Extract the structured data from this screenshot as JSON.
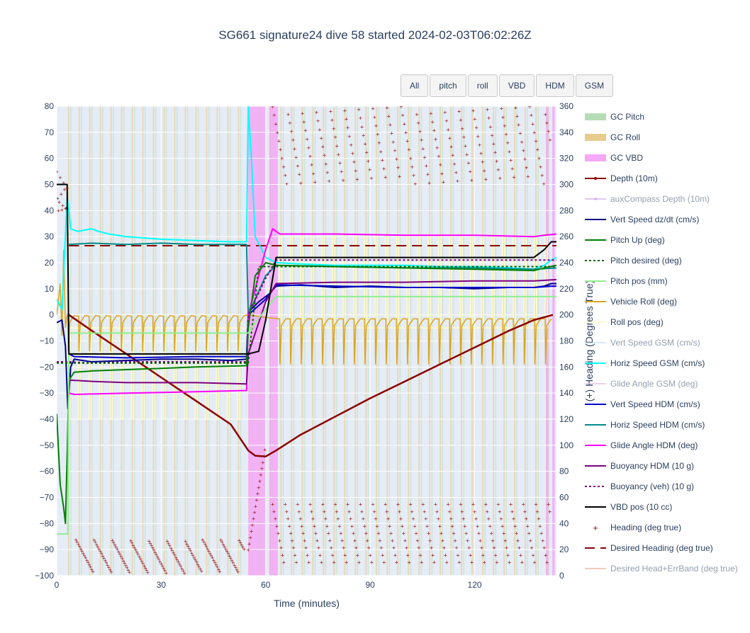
{
  "page": {
    "title": "SG661 signature24 dive 58 started 2024-02-03T06:02:26Z"
  },
  "buttons": [
    "All",
    "pitch",
    "roll",
    "VBD",
    "HDM",
    "GSM"
  ],
  "colors": {
    "plot_bg": "#e5ecf6",
    "grid": "#ffffff",
    "gc_pitch": "#b6dcb6",
    "gc_roll": "#e8cc8e",
    "gc_vbd": "#f5a8f5",
    "depth": "#8b0000",
    "aux_depth": "#c98ce9",
    "vert_speed_dzdt": "#00008b",
    "pitch_up": "#008000",
    "pitch_desired": "#006400",
    "pitch_pos": "#90ee90",
    "vehicle_roll": "#daa520",
    "roll_pos": "#fafad2",
    "vert_speed_gsm": "#add8e6",
    "horiz_speed_gsm": "#00ffff",
    "glide_angle_gsm": "#dda0dd",
    "vert_speed_hdm": "#0000cd",
    "horiz_speed_hdm": "#008b8b",
    "glide_angle_hdm": "#ff00ff",
    "buoyancy_hdm": "#800080",
    "buoyancy_veh": "#800080",
    "vbd_pos": "#000000",
    "heading": "#8b0000",
    "desired_heading": "#8b0000",
    "desired_head_band": "#e9967a"
  },
  "chart_data": {
    "type": "line",
    "xlabel": "Time (minutes)",
    "ylabel": "",
    "y2label": "(+) Heading (Degrees True)",
    "xlim": [
      0,
      143.5
    ],
    "ylim": [
      -100,
      80
    ],
    "y2lim": [
      0,
      360
    ],
    "xticks": [
      0,
      30,
      60,
      90,
      120
    ],
    "yticks": [
      -100,
      -90,
      -80,
      -70,
      -60,
      -50,
      -40,
      -30,
      -20,
      -10,
      0,
      10,
      20,
      30,
      40,
      50,
      60,
      70,
      80
    ],
    "y2ticks": [
      0,
      20,
      40,
      60,
      80,
      100,
      120,
      140,
      160,
      180,
      200,
      220,
      240,
      260,
      280,
      300,
      320,
      340,
      360
    ],
    "grid": true,
    "legend_position": "right",
    "legend": [
      {
        "label": "GC Pitch",
        "style": "band",
        "color_key": "gc_pitch",
        "muted": false
      },
      {
        "label": "GC Roll",
        "style": "band",
        "color_key": "gc_roll",
        "muted": false
      },
      {
        "label": "GC VBD",
        "style": "band",
        "color_key": "gc_vbd",
        "muted": false
      },
      {
        "label": "Depth (10m)",
        "style": "line-marker",
        "color_key": "depth",
        "muted": false
      },
      {
        "label": "auxCompass Depth (10m)",
        "style": "line-marker",
        "color_key": "aux_depth",
        "muted": true
      },
      {
        "label": "Vert Speed dz/dt (cm/s)",
        "style": "line",
        "color_key": "vert_speed_dzdt",
        "muted": false
      },
      {
        "label": "Pitch Up (deg)",
        "style": "line",
        "color_key": "pitch_up",
        "muted": false
      },
      {
        "label": "Pitch desired (deg)",
        "style": "dot",
        "color_key": "pitch_desired",
        "muted": false
      },
      {
        "label": "Pitch pos (mm)",
        "style": "line",
        "color_key": "pitch_pos",
        "muted": false
      },
      {
        "label": "Vehicle Roll (deg)",
        "style": "line",
        "color_key": "vehicle_roll",
        "muted": false
      },
      {
        "label": "Roll pos (deg)",
        "style": "line",
        "color_key": "roll_pos",
        "muted": false
      },
      {
        "label": "Vert Speed GSM (cm/s)",
        "style": "line",
        "color_key": "vert_speed_gsm",
        "muted": true
      },
      {
        "label": "Horiz Speed GSM (cm/s)",
        "style": "line",
        "color_key": "horiz_speed_gsm",
        "muted": false
      },
      {
        "label": "Glide Angle GSM (deg)",
        "style": "line",
        "color_key": "glide_angle_gsm",
        "muted": true
      },
      {
        "label": "Vert Speed HDM (cm/s)",
        "style": "line",
        "color_key": "vert_speed_hdm",
        "muted": false
      },
      {
        "label": "Horiz Speed HDM (cm/s)",
        "style": "line",
        "color_key": "horiz_speed_hdm",
        "muted": false
      },
      {
        "label": "Glide Angle HDM (deg)",
        "style": "line",
        "color_key": "glide_angle_hdm",
        "muted": false
      },
      {
        "label": "Buoyancy HDM (10 g)",
        "style": "line",
        "color_key": "buoyancy_hdm",
        "muted": false
      },
      {
        "label": "Buoyancy (veh) (10 g)",
        "style": "dot",
        "color_key": "buoyancy_veh",
        "muted": false
      },
      {
        "label": "VBD pos (10 cc)",
        "style": "line",
        "color_key": "vbd_pos",
        "muted": false
      },
      {
        "label": "Heading (deg true)",
        "style": "marker",
        "color_key": "heading",
        "muted": false
      },
      {
        "label": "Desired Heading (deg true)",
        "style": "dash",
        "color_key": "desired_heading",
        "muted": false
      },
      {
        "label": "Desired Head+ErrBand (deg true)",
        "style": "line",
        "color_key": "desired_head_band",
        "muted": true
      }
    ],
    "gc_vbd_bands": [
      [
        55,
        60
      ],
      [
        61,
        63.5
      ],
      [
        140.5,
        141.2
      ],
      [
        142.3,
        143
      ]
    ],
    "series": [
      {
        "name": "Depth (10m)",
        "color_key": "depth",
        "width": 2.5,
        "dash": "",
        "points": [
          [
            3.5,
            0
          ],
          [
            10,
            -6
          ],
          [
            20,
            -15
          ],
          [
            30,
            -24
          ],
          [
            40,
            -33
          ],
          [
            50,
            -42
          ],
          [
            55,
            -52
          ],
          [
            57,
            -54
          ],
          [
            60,
            -54.3
          ],
          [
            63,
            -52
          ],
          [
            70,
            -46
          ],
          [
            80,
            -39
          ],
          [
            90,
            -32
          ],
          [
            100,
            -25.5
          ],
          [
            110,
            -19
          ],
          [
            120,
            -12.5
          ],
          [
            130,
            -6
          ],
          [
            137,
            -2
          ],
          [
            142.5,
            0
          ]
        ]
      },
      {
        "name": "Vert Speed dz/dt (cm/s)",
        "color_key": "vert_speed_dzdt",
        "width": 2,
        "dash": "",
        "points": [
          [
            0,
            -3
          ],
          [
            1.5,
            -2
          ],
          [
            2.5,
            -12
          ],
          [
            3.2,
            -36
          ],
          [
            4,
            -20
          ],
          [
            5,
            -17
          ],
          [
            10,
            -18
          ],
          [
            20,
            -17.5
          ],
          [
            30,
            -17
          ],
          [
            40,
            -17
          ],
          [
            50,
            -17.5
          ],
          [
            54.5,
            -17
          ],
          [
            55,
            1
          ],
          [
            58,
            5
          ],
          [
            61,
            8
          ],
          [
            63,
            11
          ],
          [
            70,
            11.5
          ],
          [
            80,
            10.5
          ],
          [
            90,
            11
          ],
          [
            100,
            10.5
          ],
          [
            110,
            10.5
          ],
          [
            120,
            10
          ],
          [
            130,
            10.5
          ],
          [
            137,
            10.5
          ],
          [
            140,
            11
          ],
          [
            142,
            12
          ],
          [
            143.5,
            12
          ]
        ]
      },
      {
        "name": "Vert Speed HDM (cm/s)",
        "color_key": "vert_speed_hdm",
        "width": 2,
        "dash": "",
        "points": [
          [
            3.5,
            -15
          ],
          [
            5,
            -16
          ],
          [
            20,
            -16.5
          ],
          [
            40,
            -16
          ],
          [
            54.5,
            -16
          ],
          [
            55,
            0
          ],
          [
            60,
            6
          ],
          [
            63,
            11.5
          ],
          [
            80,
            11
          ],
          [
            100,
            10.5
          ],
          [
            120,
            10.5
          ],
          [
            137,
            10.5
          ],
          [
            142,
            11
          ],
          [
            143.5,
            11
          ]
        ]
      },
      {
        "name": "Horiz Speed GSM (cm/s)",
        "color_key": "horiz_speed_gsm",
        "width": 2,
        "dash": "",
        "points": [
          [
            0,
            6
          ],
          [
            1.5,
            2
          ],
          [
            3,
            45
          ],
          [
            3.5,
            40
          ],
          [
            4,
            33
          ],
          [
            6,
            32
          ],
          [
            10,
            33
          ],
          [
            12,
            32
          ],
          [
            15,
            31
          ],
          [
            20,
            30
          ],
          [
            30,
            29
          ],
          [
            40,
            28.5
          ],
          [
            50,
            28
          ],
          [
            54.5,
            28
          ],
          [
            55,
            80
          ],
          [
            56,
            58
          ],
          [
            57,
            30
          ],
          [
            60,
            22
          ],
          [
            63,
            20
          ],
          [
            70,
            19.5
          ],
          [
            80,
            19
          ],
          [
            90,
            19
          ],
          [
            100,
            19
          ],
          [
            110,
            18.5
          ],
          [
            120,
            18.5
          ],
          [
            130,
            18
          ],
          [
            137,
            17.5
          ],
          [
            140,
            19
          ],
          [
            142,
            21
          ],
          [
            143.5,
            22
          ]
        ]
      },
      {
        "name": "Horiz Speed HDM (cm/s)",
        "color_key": "horiz_speed_hdm",
        "width": 2,
        "dash": "",
        "points": [
          [
            3.5,
            27
          ],
          [
            10,
            27.5
          ],
          [
            20,
            27
          ],
          [
            30,
            27.5
          ],
          [
            40,
            27
          ],
          [
            54.5,
            27
          ],
          [
            55,
            0
          ],
          [
            60,
            15
          ],
          [
            63,
            19
          ],
          [
            80,
            18.5
          ],
          [
            100,
            18
          ],
          [
            120,
            18
          ],
          [
            137,
            17.5
          ],
          [
            143.5,
            18
          ]
        ]
      },
      {
        "name": "Glide Angle HDM (deg)",
        "color_key": "glide_angle_hdm",
        "width": 2,
        "dash": "",
        "points": [
          [
            3.5,
            -30
          ],
          [
            5,
            -30.5
          ],
          [
            20,
            -30
          ],
          [
            40,
            -29.5
          ],
          [
            54.5,
            -29
          ],
          [
            55,
            0
          ],
          [
            60,
            25
          ],
          [
            62,
            33
          ],
          [
            64,
            31
          ],
          [
            80,
            31
          ],
          [
            100,
            30.5
          ],
          [
            120,
            30.5
          ],
          [
            137,
            30
          ],
          [
            140,
            30.5
          ],
          [
            143.5,
            31
          ]
        ]
      },
      {
        "name": "Buoyancy HDM (10 g)",
        "color_key": "buoyancy_hdm",
        "width": 2,
        "dash": "",
        "points": [
          [
            3.5,
            -25
          ],
          [
            10,
            -25.5
          ],
          [
            20,
            -26
          ],
          [
            40,
            -26
          ],
          [
            54.5,
            -26.5
          ],
          [
            55,
            -15
          ],
          [
            60,
            5
          ],
          [
            63,
            12
          ],
          [
            80,
            12.5
          ],
          [
            100,
            12.5
          ],
          [
            120,
            13
          ],
          [
            137,
            13
          ],
          [
            143.5,
            13.5
          ]
        ]
      },
      {
        "name": "Buoyancy (veh) (10 g)",
        "color_key": "buoyancy_veh",
        "width": 2,
        "dash": "3,3",
        "points": [
          [
            0,
            -18
          ],
          [
            3.5,
            -18
          ],
          [
            10,
            -18.5
          ],
          [
            20,
            -18
          ],
          [
            40,
            -18
          ],
          [
            54.5,
            -18
          ],
          [
            55,
            0
          ],
          [
            60,
            14
          ],
          [
            63,
            21
          ],
          [
            80,
            21
          ],
          [
            100,
            21
          ],
          [
            120,
            21
          ],
          [
            137,
            21
          ],
          [
            143.5,
            21
          ]
        ]
      },
      {
        "name": "Pitch Up (deg)",
        "color_key": "pitch_up",
        "width": 2,
        "dash": "",
        "points": [
          [
            0,
            -38
          ],
          [
            1,
            -65
          ],
          [
            2,
            -74
          ],
          [
            2.5,
            -80
          ],
          [
            3,
            -55
          ],
          [
            3.5,
            -25
          ],
          [
            5,
            -22
          ],
          [
            10,
            -21.5
          ],
          [
            20,
            -21
          ],
          [
            30,
            -20.5
          ],
          [
            40,
            -20
          ],
          [
            54.5,
            -19.5
          ],
          [
            55,
            -5
          ],
          [
            57,
            15
          ],
          [
            60,
            20
          ],
          [
            63,
            19
          ],
          [
            80,
            18.5
          ],
          [
            100,
            18
          ],
          [
            120,
            17.5
          ],
          [
            137,
            17
          ],
          [
            140,
            18
          ],
          [
            143.5,
            19
          ]
        ]
      },
      {
        "name": "Pitch desired (deg)",
        "color_key": "pitch_desired",
        "width": 2,
        "dash": "3,3",
        "points": [
          [
            0,
            -18.5
          ],
          [
            55,
            -18.5
          ],
          [
            58,
            18.5
          ],
          [
            143.5,
            18.5
          ]
        ]
      },
      {
        "name": "Pitch pos (mm)",
        "color_key": "pitch_pos",
        "width": 2,
        "dash": "",
        "points": [
          [
            0,
            -84
          ],
          [
            3.2,
            -84
          ],
          [
            3.5,
            -7
          ],
          [
            55,
            -7
          ],
          [
            57,
            -3
          ],
          [
            63,
            7
          ],
          [
            143.5,
            7
          ]
        ]
      },
      {
        "name": "VBD pos (10 cc)",
        "color_key": "vbd_pos",
        "width": 2,
        "dash": "",
        "points": [
          [
            0,
            50
          ],
          [
            3,
            50
          ],
          [
            3.5,
            -15
          ],
          [
            55,
            -15
          ],
          [
            58,
            -14
          ],
          [
            60,
            -2
          ],
          [
            63,
            22
          ],
          [
            137,
            22
          ],
          [
            140,
            25
          ],
          [
            142,
            28
          ],
          [
            143.5,
            28
          ]
        ]
      }
    ],
    "desired_heading_deg": 253
  }
}
